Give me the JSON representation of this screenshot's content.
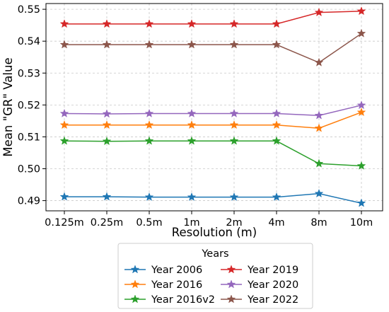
{
  "chart_data": {
    "type": "line",
    "categories": [
      "0.125m",
      "0.25m",
      "0.5m",
      "1m",
      "2m",
      "4m",
      "8m",
      "10m"
    ],
    "xlabel": "Resolution (m)",
    "ylabel": "Mean \"GR\" Value",
    "ylim": [
      0.4868,
      0.5518
    ],
    "yticks": [
      0.49,
      0.5,
      0.51,
      0.52,
      0.53,
      0.54,
      0.55
    ],
    "ytick_labels": [
      "0.49",
      "0.50",
      "0.51",
      "0.52",
      "0.53",
      "0.54",
      "0.55"
    ],
    "grid": true,
    "marker": "star",
    "legend": {
      "title": "Years",
      "placement": "below-center",
      "columns": 2
    },
    "series": [
      {
        "name": "Year 2006",
        "color": "#1f77b4",
        "values": [
          0.4912,
          0.4912,
          0.4911,
          0.4911,
          0.4911,
          0.4911,
          0.4922,
          0.4892
        ]
      },
      {
        "name": "Year 2016",
        "color": "#ff7f0e",
        "values": [
          0.5137,
          0.5137,
          0.5137,
          0.5137,
          0.5137,
          0.5137,
          0.5127,
          0.5177
        ]
      },
      {
        "name": "Year 2016v2",
        "color": "#2ca02c",
        "values": [
          0.5087,
          0.5086,
          0.5087,
          0.5087,
          0.5087,
          0.5087,
          0.5016,
          0.5009
        ]
      },
      {
        "name": "Year 2019",
        "color": "#d62728",
        "values": [
          0.5454,
          0.5454,
          0.5454,
          0.5454,
          0.5454,
          0.5454,
          0.549,
          0.5494
        ]
      },
      {
        "name": "Year 2020",
        "color": "#9467bd",
        "values": [
          0.5173,
          0.5172,
          0.5173,
          0.5173,
          0.5173,
          0.5173,
          0.5167,
          0.5199
        ]
      },
      {
        "name": "Year 2022",
        "color": "#8c564b",
        "values": [
          0.5389,
          0.5389,
          0.5389,
          0.5389,
          0.5389,
          0.5389,
          0.5333,
          0.5424
        ]
      }
    ]
  }
}
